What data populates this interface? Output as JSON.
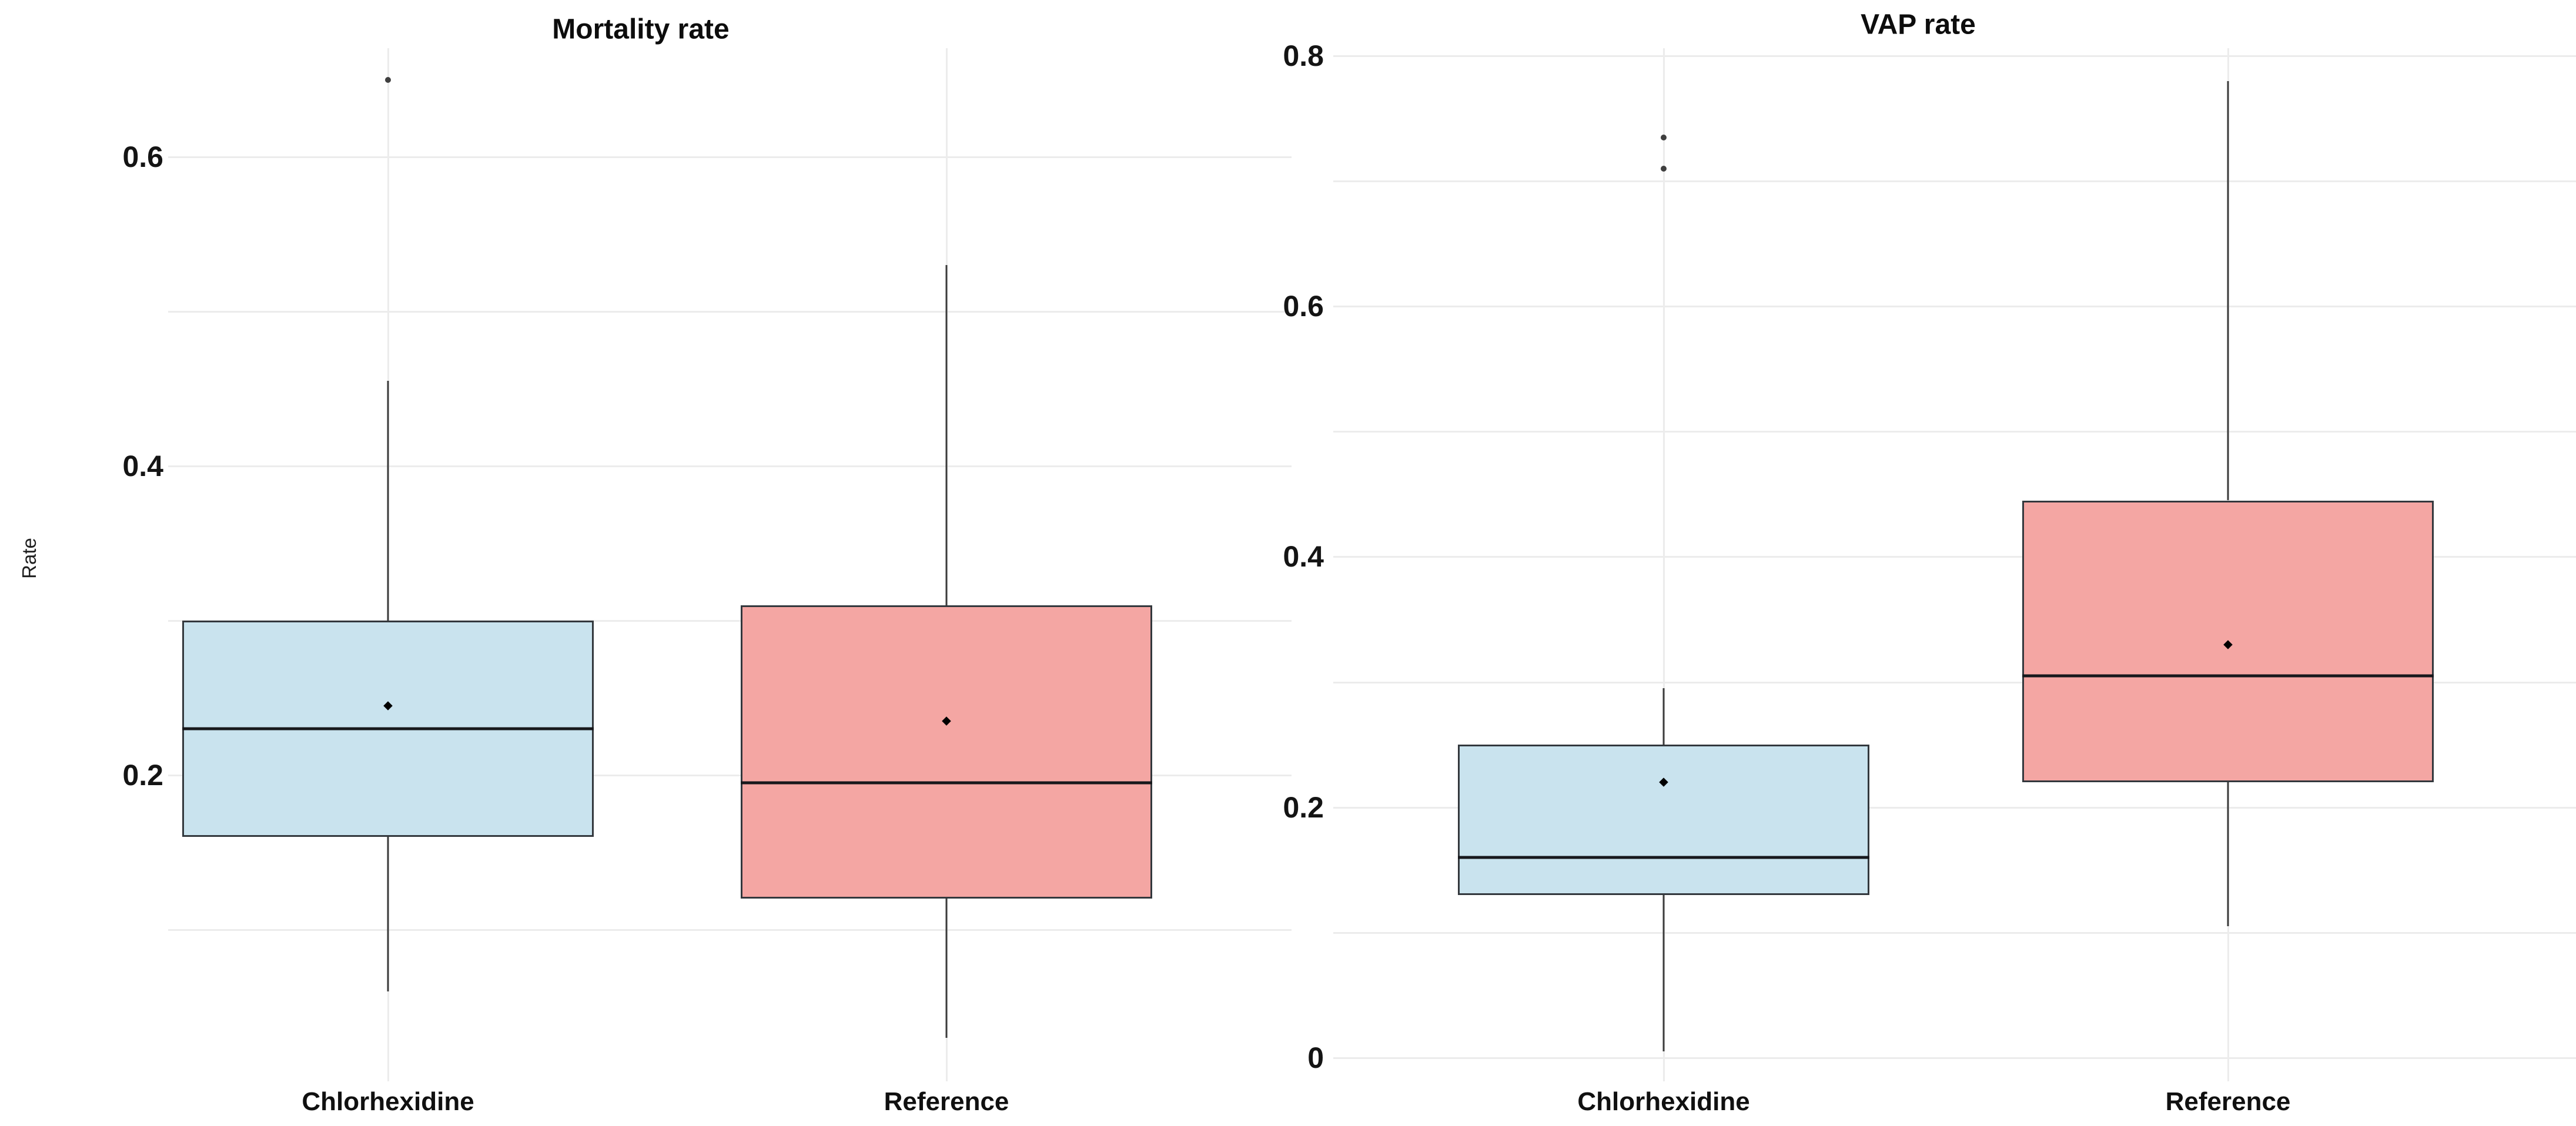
{
  "figure": {
    "background": "#ffffff",
    "text_color": "#111111",
    "grid_color": "#ececec",
    "box_border_color": "#33383d",
    "median_color": "#17181c",
    "whisker_color": "#3c3c3c",
    "mean_marker_color": "#000000",
    "outlier_color": "#3f3f3f"
  },
  "chart_data": [
    {
      "type": "box",
      "title": "Mortality rate",
      "ylabel": "Rate",
      "xlabel": "",
      "categories": [
        "Chlorhexidine",
        "Reference"
      ],
      "ylim": [
        0.0,
        0.68
      ],
      "grid": "on",
      "legend": "none",
      "yticks": [
        {
          "label": "0.6",
          "value": 0.6
        },
        {
          "label": "0.4",
          "value": 0.4
        },
        {
          "label": "0.2",
          "value": 0.2
        }
      ],
      "minor_gridlines": {
        "min": 0.1,
        "max": 0.6,
        "step": 0.1
      },
      "series": [
        {
          "name": "Chlorhexidine",
          "fill": "#c9e3ee",
          "whisker_low": 0.06,
          "q1": 0.16,
          "median": 0.23,
          "mean": 0.245,
          "q3": 0.3,
          "whisker_high": 0.455,
          "outliers": [
            0.65
          ]
        },
        {
          "name": "Reference",
          "fill": "#f4a6a3",
          "whisker_low": 0.03,
          "q1": 0.12,
          "median": 0.195,
          "mean": 0.235,
          "q3": 0.31,
          "whisker_high": 0.53,
          "outliers": []
        }
      ]
    },
    {
      "type": "box",
      "title": "VAP rate",
      "ylabel": "",
      "xlabel": "",
      "categories": [
        "Chlorhexidine",
        "Reference"
      ],
      "ylim": [
        0.0,
        0.82
      ],
      "grid": "on",
      "legend": "none",
      "yticks": [
        {
          "label": "0.8",
          "value": 0.8
        },
        {
          "label": "0.6",
          "value": 0.6
        },
        {
          "label": "0.4",
          "value": 0.4
        },
        {
          "label": "0.2",
          "value": 0.2
        },
        {
          "label": "0",
          "value": 0.0
        }
      ],
      "minor_gridlines": {
        "min": 0.0,
        "max": 0.8,
        "step": 0.1
      },
      "series": [
        {
          "name": "Chlorhexidine",
          "fill": "#c9e3ee",
          "whisker_low": 0.005,
          "q1": 0.13,
          "median": 0.16,
          "mean": 0.22,
          "q3": 0.25,
          "whisker_high": 0.295,
          "outliers": [
            0.735,
            0.71
          ]
        },
        {
          "name": "Reference",
          "fill": "#f4a6a3",
          "whisker_low": 0.105,
          "q1": 0.22,
          "median": 0.305,
          "mean": 0.33,
          "q3": 0.445,
          "whisker_high": 0.78,
          "outliers": []
        }
      ]
    }
  ]
}
